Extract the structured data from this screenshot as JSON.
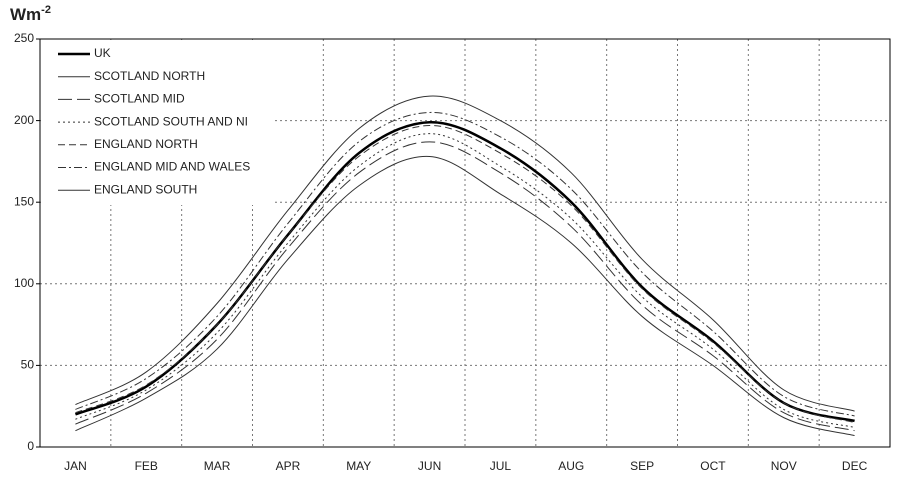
{
  "chart_data": {
    "type": "line",
    "y_label": "Wm",
    "y_label_superscript": "-2",
    "categories": [
      "JAN",
      "FEB",
      "MAR",
      "APR",
      "MAY",
      "JUN",
      "JUL",
      "AUG",
      "SEP",
      "OCT",
      "NOV",
      "DEC"
    ],
    "ylim": [
      0,
      250
    ],
    "yticks": [
      0,
      50,
      100,
      150,
      200,
      250
    ],
    "grid": true,
    "legend": "top-left",
    "series": [
      {
        "name": "UK",
        "color": "#000000",
        "dash": "solid",
        "width": 2.5,
        "values": [
          20,
          37,
          75,
          130,
          180,
          199,
          183,
          150,
          98,
          65,
          27,
          16
        ]
      },
      {
        "name": "SCOTLAND NORTH",
        "color": "#333333",
        "dash": "solid",
        "width": 1,
        "values": [
          10,
          30,
          60,
          115,
          160,
          178,
          155,
          125,
          80,
          50,
          18,
          7
        ]
      },
      {
        "name": "SCOTLAND MID",
        "color": "#333333",
        "dash": "long-dash",
        "width": 1,
        "values": [
          14,
          33,
          66,
          122,
          168,
          187,
          168,
          135,
          87,
          56,
          21,
          10
        ]
      },
      {
        "name": "SCOTLAND SOUTH AND NI",
        "color": "#333333",
        "dash": "dotted",
        "width": 1,
        "values": [
          17,
          35,
          70,
          125,
          172,
          192,
          172,
          140,
          92,
          60,
          23,
          12
        ]
      },
      {
        "name": "ENGLAND NORTH",
        "color": "#333333",
        "dash": "dashed",
        "width": 1,
        "values": [
          21,
          38,
          75,
          130,
          178,
          197,
          180,
          148,
          97,
          64,
          27,
          15
        ]
      },
      {
        "name": "ENGLAND MID AND WALES",
        "color": "#333333",
        "dash": "dash-dot",
        "width": 1,
        "values": [
          23,
          42,
          80,
          137,
          187,
          205,
          190,
          158,
          107,
          71,
          31,
          19
        ]
      },
      {
        "name": "ENGLAND SOUTH",
        "color": "#333333",
        "dash": "solid",
        "width": 1,
        "values": [
          26,
          46,
          88,
          145,
          195,
          215,
          200,
          168,
          115,
          78,
          35,
          22
        ]
      }
    ]
  }
}
